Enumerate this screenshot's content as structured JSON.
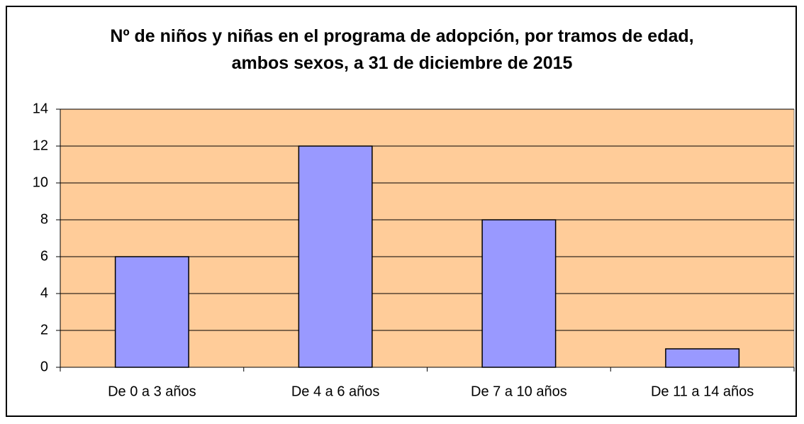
{
  "chart_data": {
    "type": "bar",
    "title": "Nº de niños y niñas en el programa de adopción, por tramos de edad, ambos sexos, a 31 de diciembre de 2015",
    "categories": [
      "De 0 a 3 años",
      "De 4 a 6 años",
      "De 7 a 10 años",
      "De 11 a 14 años"
    ],
    "values": [
      6,
      12,
      8,
      1
    ],
    "color": "#9999ff",
    "ylim": [
      0,
      14
    ],
    "yticks": [
      0,
      2,
      4,
      6,
      8,
      10,
      12,
      14
    ],
    "grid": true
  }
}
